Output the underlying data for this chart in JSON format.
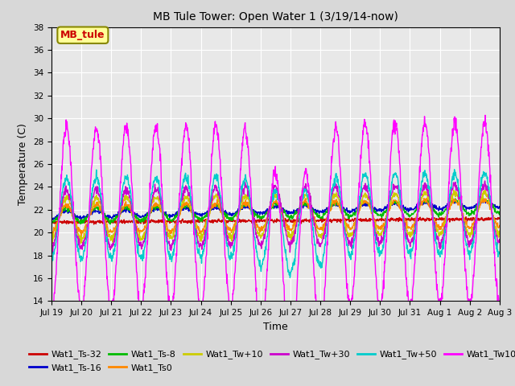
{
  "title": "MB Tule Tower: Open Water 1 (3/19/14-now)",
  "xlabel": "Time",
  "ylabel": "Temperature (C)",
  "ylim": [
    14,
    38
  ],
  "yticks": [
    14,
    16,
    18,
    20,
    22,
    24,
    26,
    28,
    30,
    32,
    34,
    36,
    38
  ],
  "series_colors": {
    "Wat1_Ts-32": "#cc0000",
    "Wat1_Ts-16": "#0000cc",
    "Wat1_Ts-8": "#00bb00",
    "Wat1_Ts0": "#ff8800",
    "Wat1_Tw+10": "#cccc00",
    "Wat1_Tw+30": "#cc00cc",
    "Wat1_Tw+50": "#00cccc",
    "Wat1_Tw100": "#ff00ff"
  },
  "annotation_text": "MB_tule",
  "annotation_color": "#cc0000",
  "annotation_bg": "#ffff99",
  "background_color": "#d8d8d8",
  "plot_background": "#e8e8e8",
  "grid_color": "#ffffff",
  "n_days": 15,
  "xtick_labels": [
    "Jul 19",
    "Jul 20",
    "Jul 21",
    "Jul 22",
    "Jul 23",
    "Jul 24",
    "Jul 25",
    "Jul 26",
    "Jul 27",
    "Jul 28",
    "Jul 29",
    "Jul 30",
    "Jul 31",
    "Aug 1",
    "Aug 2",
    "Aug 3"
  ]
}
